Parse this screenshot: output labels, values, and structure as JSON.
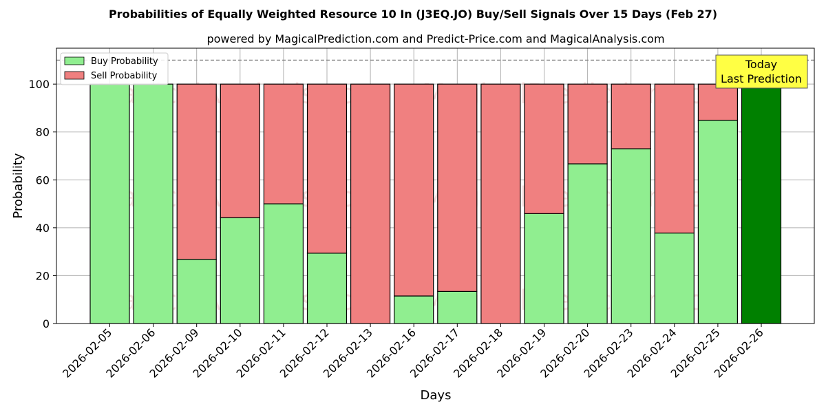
{
  "chart_data": {
    "type": "bar",
    "stacked": true,
    "title": "Probabilities of Equally Weighted Resource 10 In (J3EQ.JO) Buy/Sell Signals Over 15 Days (Feb 27)",
    "subtitle": "powered by MagicalPrediction.com and Predict-Price.com and MagicalAnalysis.com",
    "xlabel": "Days",
    "ylabel": "Probability",
    "ylim": [
      0,
      115
    ],
    "yticks": [
      0,
      20,
      40,
      60,
      80,
      100
    ],
    "grid": true,
    "legend_position": "top-left",
    "reference_line": 110,
    "categories": [
      "2026-02-05",
      "2026-02-06",
      "2026-02-09",
      "2026-02-10",
      "2026-02-11",
      "2026-02-12",
      "2026-02-13",
      "2026-02-16",
      "2026-02-17",
      "2026-02-18",
      "2026-02-19",
      "2026-02-20",
      "2026-02-23",
      "2026-02-24",
      "2026-02-25",
      "2026-02-26"
    ],
    "series": [
      {
        "name": "Buy Probability",
        "color": "#90ee90",
        "values": [
          100,
          100,
          26.8,
          44.2,
          50,
          29.4,
          0,
          11.5,
          13.4,
          0,
          45.9,
          66.7,
          73,
          37.8,
          84.9,
          100
        ]
      },
      {
        "name": "Sell Probability",
        "color": "#f08080",
        "values": [
          0,
          0,
          73.2,
          55.8,
          50,
          70.6,
          100,
          88.5,
          86.6,
          100,
          54.1,
          33.3,
          27,
          62.2,
          15.1,
          0
        ]
      }
    ],
    "highlight": {
      "index": 15,
      "color": "#008000"
    },
    "annotation": {
      "lines": [
        "Today",
        "Last Prediction"
      ],
      "background": "#ffff44"
    },
    "watermarks": [
      "MagicalAnalysis.com",
      "MagicalPrediction.com"
    ]
  }
}
